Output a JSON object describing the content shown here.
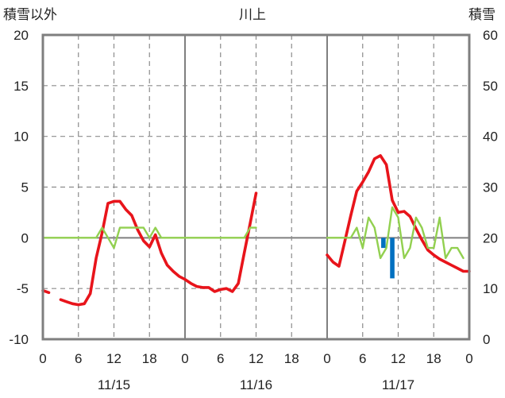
{
  "chart_data": {
    "type": "line",
    "title": "川上",
    "ylabel_left": "積雪以外",
    "ylabel_right": "積雪",
    "y_left_range": [
      -10,
      20
    ],
    "y_left_ticks": [
      "20",
      "15",
      "10",
      "5",
      "0",
      "-5",
      "-10"
    ],
    "y_right_range": [
      0,
      60
    ],
    "y_right_ticks": [
      "60",
      "50",
      "40",
      "30",
      "20",
      "10",
      "0"
    ],
    "x_range_hours": [
      0,
      72
    ],
    "x_tick_hours": [
      0,
      6,
      12,
      18,
      24,
      30,
      36,
      42,
      48,
      54,
      60,
      66,
      72
    ],
    "x_tick_labels": [
      "0",
      "6",
      "12",
      "18",
      "0",
      "6",
      "12",
      "18",
      "0",
      "6",
      "12",
      "18",
      "0"
    ],
    "date_labels": [
      {
        "label": "11/15",
        "hour": 12
      },
      {
        "label": "11/16",
        "hour": 36
      },
      {
        "label": "11/17",
        "hour": 60
      }
    ],
    "grid": true,
    "series": [
      {
        "key": "temperature",
        "color": "#e8141b",
        "axis": "left",
        "segments": [
          [
            [
              0,
              -5.2
            ],
            [
              1,
              -5.4
            ]
          ],
          [
            [
              3,
              -6.1
            ],
            [
              4,
              -6.3
            ],
            [
              5,
              -6.5
            ],
            [
              6,
              -6.6
            ],
            [
              7,
              -6.5
            ],
            [
              8,
              -5.5
            ],
            [
              9,
              -2.0
            ],
            [
              10,
              0.5
            ],
            [
              11,
              3.4
            ],
            [
              12,
              3.6
            ],
            [
              13,
              3.6
            ],
            [
              14,
              2.8
            ],
            [
              15,
              2.2
            ],
            [
              16,
              0.8
            ],
            [
              17,
              -0.3
            ],
            [
              18,
              -0.9
            ],
            [
              19,
              0.3
            ],
            [
              20,
              -1.5
            ],
            [
              21,
              -2.7
            ],
            [
              22,
              -3.3
            ],
            [
              23,
              -3.8
            ],
            [
              24,
              -4.1
            ],
            [
              25,
              -4.5
            ],
            [
              26,
              -4.8
            ],
            [
              27,
              -4.9
            ],
            [
              28,
              -4.9
            ],
            [
              29,
              -5.3
            ],
            [
              30,
              -5.1
            ],
            [
              31,
              -5.0
            ],
            [
              32,
              -5.3
            ],
            [
              33,
              -4.5
            ],
            [
              34,
              -1.5
            ],
            [
              35,
              1.4
            ],
            [
              36,
              4.4
            ]
          ],
          [
            [
              48,
              -1.7
            ],
            [
              49,
              -2.4
            ],
            [
              50,
              -2.8
            ],
            [
              51,
              -0.3
            ],
            [
              52,
              2.2
            ],
            [
              53,
              4.6
            ],
            [
              54,
              5.5
            ],
            [
              55,
              6.5
            ],
            [
              56,
              7.8
            ],
            [
              57,
              8.1
            ],
            [
              58,
              7.2
            ],
            [
              59,
              3.7
            ],
            [
              60,
              2.5
            ],
            [
              61,
              2.6
            ],
            [
              62,
              2.1
            ],
            [
              63,
              0.9
            ],
            [
              64,
              -0.2
            ],
            [
              65,
              -1.2
            ],
            [
              66,
              -1.7
            ],
            [
              67,
              -2.1
            ],
            [
              68,
              -2.4
            ],
            [
              69,
              -2.7
            ],
            [
              70,
              -3.0
            ],
            [
              71,
              -3.3
            ],
            [
              72,
              -3.3
            ]
          ]
        ]
      },
      {
        "key": "wind_speed",
        "color": "#92d050",
        "axis": "left",
        "segments": [
          [
            [
              0,
              0
            ],
            [
              1,
              0
            ],
            [
              2,
              0
            ],
            [
              3,
              0
            ],
            [
              4,
              0
            ],
            [
              5,
              0
            ],
            [
              6,
              0
            ],
            [
              7,
              0
            ],
            [
              8,
              0
            ],
            [
              9,
              0
            ],
            [
              10,
              1
            ],
            [
              11,
              0
            ],
            [
              12,
              -1
            ],
            [
              13,
              1
            ],
            [
              14,
              1
            ],
            [
              15,
              1
            ],
            [
              16,
              1
            ],
            [
              17,
              1
            ],
            [
              18,
              0
            ],
            [
              19,
              1
            ],
            [
              20,
              0
            ],
            [
              21,
              0
            ],
            [
              22,
              0
            ],
            [
              23,
              0
            ],
            [
              24,
              0
            ],
            [
              25,
              0
            ],
            [
              26,
              0
            ],
            [
              27,
              0
            ],
            [
              28,
              0
            ],
            [
              29,
              0
            ],
            [
              30,
              0
            ],
            [
              31,
              0
            ],
            [
              32,
              0
            ],
            [
              33,
              0
            ],
            [
              34,
              0
            ],
            [
              35,
              1
            ],
            [
              36,
              1
            ]
          ],
          [
            [
              48,
              0
            ],
            [
              49,
              0
            ],
            [
              50,
              0
            ],
            [
              51,
              0
            ],
            [
              52,
              0
            ],
            [
              53,
              1
            ],
            [
              54,
              -1
            ],
            [
              55,
              2
            ],
            [
              56,
              1
            ],
            [
              57,
              -2
            ],
            [
              58,
              -1
            ],
            [
              59,
              3
            ],
            [
              60,
              2
            ],
            [
              61,
              -2
            ],
            [
              62,
              -1
            ],
            [
              63,
              2
            ],
            [
              64,
              1
            ],
            [
              65,
              -1
            ],
            [
              66,
              -1
            ],
            [
              67,
              2
            ],
            [
              68,
              -2
            ],
            [
              69,
              -1
            ],
            [
              70,
              -1
            ],
            [
              71,
              -2
            ]
          ]
        ]
      },
      {
        "key": "snow_depth",
        "color": "#7030a0",
        "axis": "right",
        "segments": [
          [
            [
              0,
              0
            ],
            [
              36,
              0
            ]
          ],
          [
            [
              48,
              0
            ],
            [
              72,
              0
            ]
          ]
        ]
      }
    ],
    "bars": {
      "key": "precipitation",
      "color": "#0070c0",
      "axis": "left",
      "points": [
        [
          57.5,
          -1.0
        ],
        [
          59,
          -4.0
        ]
      ]
    }
  }
}
